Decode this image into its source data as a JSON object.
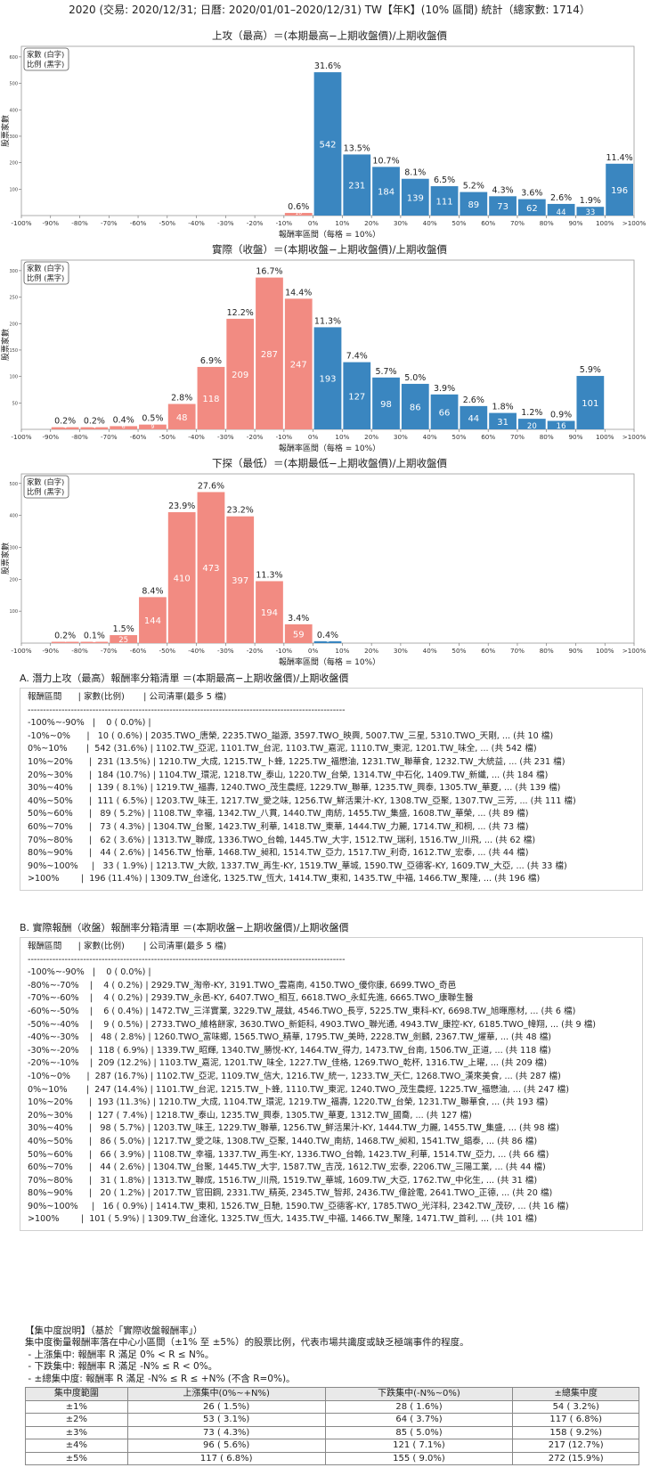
{
  "title": "2020 (交易: 2020/12/31; 日曆: 2020/01/01–2020/12/31) TW【年K】(10% 區間) 統計（總家數: 1714）",
  "chart_data": [
    {
      "type": "bar",
      "title": "上攻（最高）＝(本期最高−上期收盤價)/上期收盤價",
      "xlabel": "報酬率區間（每格 = 10%）",
      "ylabel": "股票家數",
      "legend": [
        "家數 (白字)",
        "比例 (黑字)"
      ],
      "edge_labels": [
        "-100%",
        "-90%",
        "-80%",
        "-70%",
        "-60%",
        "-50%",
        "-40%",
        "-30%",
        "-20%",
        "-10%",
        "0%",
        "10%",
        "20%",
        "30%",
        "40%",
        "50%",
        "60%",
        "70%",
        "80%",
        "90%",
        "100%",
        ">100%"
      ],
      "yticks": [
        100,
        200,
        300,
        400,
        500,
        600
      ],
      "ylim": [
        0,
        640
      ],
      "counts": [
        0,
        10,
        542,
        231,
        184,
        139,
        111,
        89,
        73,
        62,
        44,
        33,
        196
      ],
      "pcts": [
        "",
        "0.6%",
        "31.6%",
        "13.5%",
        "10.7%",
        "8.1%",
        "6.5%",
        "5.2%",
        "4.3%",
        "3.6%",
        "2.6%",
        "1.9%",
        "11.4%"
      ]
    },
    {
      "type": "bar",
      "title": "實際（收盤）＝(本期收盤−上期收盤價)/上期收盤價",
      "xlabel": "報酬率區間（每格 = 10%）",
      "ylabel": "股票家數",
      "legend": [
        "家數 (白字)",
        "比例 (黑字)"
      ],
      "edge_labels": [
        "-100%",
        "-90%",
        "-80%",
        "-70%",
        "-60%",
        "-50%",
        "-40%",
        "-30%",
        "-20%",
        "-10%",
        "0%",
        "10%",
        "20%",
        "30%",
        "40%",
        "50%",
        "60%",
        "70%",
        "80%",
        "90%",
        "100%",
        ">100%"
      ],
      "yticks": [
        50,
        100,
        150,
        200,
        250,
        300
      ],
      "ylim": [
        0,
        320
      ],
      "counts": [
        0,
        4,
        4,
        6,
        9,
        48,
        118,
        209,
        287,
        247,
        193,
        127,
        98,
        86,
        66,
        44,
        31,
        20,
        16,
        101
      ],
      "pcts": [
        "",
        "0.2%",
        "0.2%",
        "0.4%",
        "0.5%",
        "2.8%",
        "6.9%",
        "12.2%",
        "16.7%",
        "14.4%",
        "11.3%",
        "7.4%",
        "5.7%",
        "5.0%",
        "3.9%",
        "2.6%",
        "1.8%",
        "1.2%",
        "0.9%",
        "5.9%"
      ]
    },
    {
      "type": "bar",
      "title": "下探（最低）＝(本期最低−上期收盤價)/上期收盤價",
      "xlabel": "報酬率區間（每格 = 10%）",
      "ylabel": "股票家數",
      "legend": [
        "家數 (白字)",
        "比例 (黑字)"
      ],
      "edge_labels": [
        "-100%",
        "-90%",
        "-80%",
        "-70%",
        "-60%",
        "-50%",
        "-40%",
        "-30%",
        "-20%",
        "-10%",
        "0%",
        "10%",
        "20%",
        "30%",
        "40%",
        "50%",
        "60%",
        "70%",
        "80%",
        "90%",
        "100%",
        ">100%"
      ],
      "yticks": [
        100,
        200,
        300,
        400,
        500
      ],
      "ylim": [
        0,
        530
      ],
      "counts": [
        0,
        4,
        2,
        25,
        144,
        410,
        473,
        397,
        194,
        59,
        6
      ],
      "pcts": [
        "",
        "0.2%",
        "0.1%",
        "1.5%",
        "8.4%",
        "23.9%",
        "27.6%",
        "23.2%",
        "11.3%",
        "3.4%",
        "0.4%"
      ]
    }
  ],
  "sectionA": {
    "title": "A. 潛力上攻（最高）報酬率分箱清單 ＝(本期最高−上期收盤價)/上期收盤價",
    "header": "報酬區間      | 家數(比例)       | 公司清單(最多 5 檔)",
    "divider": "-------------------------------------------------------------------------------------------------------",
    "rows": [
      "-100%~-90%   |    0 ( 0.0%) |",
      "-10%~0%      |   10 ( 0.6%) | 2035.TWO_唐榮, 2235.TWO_謚源, 3597.TWO_映興, 5007.TW_三星, 5310.TWO_天剛, ... (共 10 檔)",
      "0%~10%       |  542 (31.6%) | 1102.TW_亞泥, 1101.TW_台泥, 1103.TW_嘉泥, 1110.TW_東泥, 1201.TW_味全, ... (共 542 檔)",
      "10%~20%      |  231 (13.5%) | 1210.TW_大成, 1215.TW_卜蜂, 1225.TW_福懋油, 1231.TW_聯華食, 1232.TW_大統益, ... (共 231 檔)",
      "20%~30%      |  184 (10.7%) | 1104.TW_環泥, 1218.TW_泰山, 1220.TW_台榮, 1314.TW_中石化, 1409.TW_新纖, ... (共 184 檔)",
      "30%~40%      |  139 ( 8.1%) | 1219.TW_福壽, 1240.TWO_茂生農經, 1229.TW_聯華, 1235.TW_興泰, 1305.TW_華夏, ... (共 139 檔)",
      "40%~50%      |  111 ( 6.5%) | 1203.TW_味王, 1217.TW_愛之味, 1256.TW_鮮活果汁-KY, 1308.TW_亞聚, 1307.TW_三芳, ... (共 111 檔)",
      "50%~60%      |   89 ( 5.2%) | 1108.TW_幸福, 1342.TW_八貫, 1440.TW_南紡, 1455.TW_集盛, 1608.TW_華榮, ... (共 89 檔)",
      "60%~70%      |   73 ( 4.3%) | 1304.TW_台聚, 1423.TW_利華, 1418.TW_東華, 1444.TW_力麗, 1714.TW_和桐, ... (共 73 檔)",
      "70%~80%      |   62 ( 3.6%) | 1313.TW_聯成, 1336.TWO_台翰, 1445.TW_大宇, 1512.TW_瑞利, 1516.TW_川飛, ... (共 62 檔)",
      "80%~90%      |   44 ( 2.6%) | 1456.TW_怡華, 1468.TW_昶和, 1514.TW_亞力, 1517.TW_利奇, 1612.TW_宏泰, ... (共 44 檔)",
      "90%~100%     |   33 ( 1.9%) | 1213.TW_大飲, 1337.TW_再生-KY, 1519.TW_華城, 1590.TW_亞德客-KY, 1609.TW_大亞, ... (共 33 檔)",
      ">100%        |  196 (11.4%) | 1309.TW_台達化, 1325.TW_恆大, 1414.TW_東和, 1435.TW_中福, 1466.TW_聚隆, ... (共 196 檔)"
    ]
  },
  "sectionB": {
    "title": "B. 實際報酬（收盤）報酬率分箱清單 ＝(本期收盤−上期收盤價)/上期收盤價",
    "header": "報酬區間      | 家數(比例)       | 公司清單(最多 5 檔)",
    "divider": "-------------------------------------------------------------------------------------------------------",
    "rows": [
      "-100%~-90%   |    0 ( 0.0%) |",
      "-80%~-70%    |    4 ( 0.2%) | 2929.TW_淘帝-KY, 3191.TWO_雲嘉南, 4150.TWO_優你康, 6699.TWO_奇邑",
      "-70%~-60%    |    4 ( 0.2%) | 2939.TW_永邑-KY, 6407.TWO_相互, 6618.TWO_永虹先進, 6665.TWO_康聯生醫",
      "-60%~-50%    |    6 ( 0.4%) | 1472.TW_三洋實業, 3229.TW_晟鈦, 4546.TWO_長亨, 5225.TW_東科-KY, 6698.TW_旭暉應材, ... (共 6 檔)",
      "-50%~-40%    |    9 ( 0.5%) | 2733.TWO_維格餅家, 3630.TWO_新鉅科, 4903.TWO_聯光通, 4943.TW_康控-KY, 6185.TWO_幃翔, ... (共 9 檔)",
      "-40%~-30%    |   48 ( 2.8%) | 1260.TWO_富味鄉, 1565.TWO_精華, 1795.TW_美時, 2228.TW_劍麟, 2367.TW_燿華, ... (共 48 檔)",
      "-30%~-20%    |  118 ( 6.9%) | 1339.TW_昭輝, 1340.TW_勝悅-KY, 1464.TW_得力, 1473.TW_台南, 1506.TW_正道, ... (共 118 檔)",
      "-20%~-10%    |  209 (12.2%) | 1103.TW_嘉泥, 1201.TW_味全, 1227.TW_佳格, 1269.TWO_乾杯, 1316.TW_上曜, ... (共 209 檔)",
      "-10%~0%      |  287 (16.7%) | 1102.TW_亞泥, 1109.TW_信大, 1216.TW_統一, 1233.TW_天仁, 1268.TWO_漢來美食, ... (共 287 檔)",
      "0%~10%       |  247 (14.4%) | 1101.TW_台泥, 1215.TW_卜蜂, 1110.TW_東泥, 1240.TWO_茂生農經, 1225.TW_福懋油, ... (共 247 檔)",
      "10%~20%      |  193 (11.3%) | 1210.TW_大成, 1104.TW_環泥, 1219.TW_福壽, 1220.TW_台榮, 1231.TW_聯華食, ... (共 193 檔)",
      "20%~30%      |  127 ( 7.4%) | 1218.TW_泰山, 1235.TW_興泰, 1305.TW_華夏, 1312.TW_國喬, ... (共 127 檔)",
      "30%~40%      |   98 ( 5.7%) | 1203.TW_味王, 1229.TW_聯華, 1256.TW_鮮活果汁-KY, 1444.TW_力麗, 1455.TW_集盛, ... (共 98 檔)",
      "40%~50%      |   86 ( 5.0%) | 1217.TW_愛之味, 1308.TW_亞聚, 1440.TW_南紡, 1468.TW_昶和, 1541.TW_錩泰, ... (共 86 檔)",
      "50%~60%      |   66 ( 3.9%) | 1108.TW_幸福, 1337.TW_再生-KY, 1336.TWO_台翰, 1423.TW_利華, 1514.TW_亞力, ... (共 66 檔)",
      "60%~70%      |   44 ( 2.6%) | 1304.TW_台聚, 1445.TW_大宇, 1587.TW_吉茂, 1612.TW_宏泰, 2206.TW_三陽工業, ... (共 44 檔)",
      "70%~80%      |   31 ( 1.8%) | 1313.TW_聯成, 1516.TW_川飛, 1519.TW_華城, 1609.TW_大亞, 1762.TW_中化生, ... (共 31 檔)",
      "80%~90%      |   20 ( 1.2%) | 2017.TW_官田鋼, 2331.TW_精英, 2345.TW_智邦, 2436.TW_偉詮電, 2641.TWO_正德, ... (共 20 檔)",
      "90%~100%     |   16 ( 0.9%) | 1414.TW_東和, 1526.TW_日馳, 1590.TW_亞德客-KY, 1785.TWO_光洋科, 2342.TW_茂矽, ... (共 16 檔)",
      ">100%        |  101 ( 5.9%) | 1309.TW_台達化, 1325.TW_恆大, 1435.TW_中福, 1466.TW_聚隆, 1471.TW_首利, ... (共 101 檔)"
    ]
  },
  "concentration": {
    "title": "【集中度說明】（基於「實際收盤報酬率」）",
    "notes": [
      "集中度衡量報酬率落在中心小區間（±1% 至 ±5%）的股票比例，代表市場共識度或缺乏極端事件的程度。",
      " - 上漲集中: 報酬率 R 滿足 0% < R ≤ N%。",
      " - 下跌集中: 報酬率 R 滿足 -N% ≤ R < 0%。",
      " - ±總集中度: 報酬率 R 滿足 -N% ≤ R ≤ +N% (不含 R=0%)。"
    ],
    "headers": [
      "集中度範圍",
      "上漲集中(0%~+N%)",
      "下跌集中(-N%~0%)",
      "±總集中度"
    ],
    "rows": [
      [
        "±1%",
        "26 ( 1.5%)",
        "28 ( 1.6%)",
        "54 ( 3.2%)"
      ],
      [
        "±2%",
        "53 ( 3.1%)",
        "64 ( 3.7%)",
        "117 ( 6.8%)"
      ],
      [
        "±3%",
        "73 ( 4.3%)",
        "85 ( 5.0%)",
        "158 ( 9.2%)"
      ],
      [
        "±4%",
        "96 ( 5.6%)",
        "121 ( 7.1%)",
        "217 (12.7%)"
      ],
      [
        "±5%",
        "117 ( 6.8%)",
        "155 ( 9.0%)",
        "272 (15.9%)"
      ]
    ]
  },
  "colors": {
    "positive": "#3a86c0",
    "negative": "#f28b82",
    "border": "#cfcfcf"
  }
}
